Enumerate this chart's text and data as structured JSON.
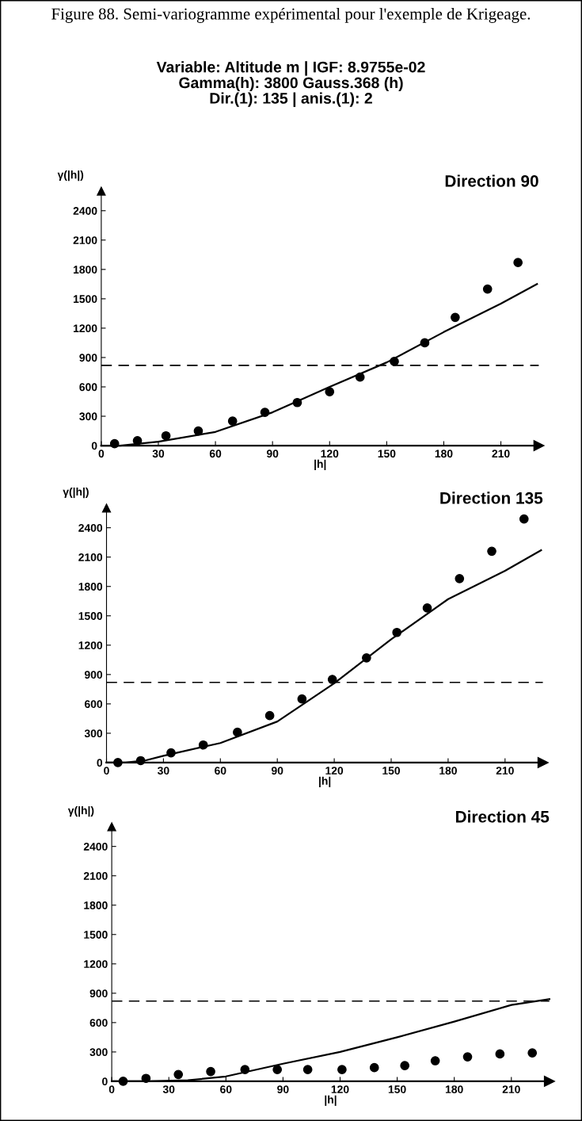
{
  "chart_data": [
    {
      "type": "scatter",
      "title": "Direction 90",
      "xlabel": "|h|",
      "ylabel": "γ(|h|)",
      "annotations": [
        "Figure 88. Semi-variogramme expérimental pour l'exemple de Krigeage.",
        "Variable: Altitude m | IGF: 8.9755e-02\nGamma(h): 3800 Gauss.368 (h)\nDir.(1): 135 | anis.(1): 2"
      ],
      "xlim": [
        0,
        230
      ],
      "ylim": [
        0,
        2600
      ],
      "xticks": [
        0,
        30,
        60,
        90,
        120,
        150,
        180,
        210
      ],
      "yticks": [
        0,
        300,
        600,
        900,
        1200,
        1500,
        1800,
        2100,
        2400
      ],
      "grid": false,
      "legend": false,
      "series": [
        {
          "marker": "circle",
          "color": "#000000",
          "x": [
            7,
            19,
            34,
            51,
            69,
            86,
            103,
            120,
            136,
            154,
            170,
            186,
            203,
            219
          ],
          "values": [
            20,
            50,
            100,
            150,
            250,
            340,
            440,
            550,
            700,
            860,
            1050,
            1310,
            1600,
            1870
          ]
        },
        {
          "type": "line",
          "marker": "none",
          "line_style": "solid",
          "color": "#000000",
          "x": [
            0,
            10,
            20,
            30,
            60,
            90,
            120,
            150,
            180,
            210,
            229
          ],
          "values": [
            0,
            0,
            20,
            40,
            140,
            340,
            600,
            850,
            1160,
            1450,
            1650
          ]
        }
      ],
      "ref_lines": [
        {
          "axis": "y",
          "value": 820,
          "line_style": "dashed",
          "color": "#000000"
        }
      ]
    },
    {
      "type": "scatter",
      "title": "Direction 135",
      "xlabel": "|h|",
      "ylabel": "γ(|h|)",
      "xlim": [
        0,
        230
      ],
      "ylim": [
        0,
        2600
      ],
      "xticks": [
        0,
        30,
        60,
        90,
        120,
        150,
        180,
        210
      ],
      "yticks": [
        0,
        300,
        600,
        900,
        1200,
        1500,
        1800,
        2100,
        2400
      ],
      "grid": false,
      "legend": false,
      "series": [
        {
          "marker": "circle",
          "color": "#000000",
          "x": [
            6,
            18,
            34,
            51,
            69,
            86,
            103,
            119,
            137,
            153,
            169,
            186,
            203,
            220
          ],
          "values": [
            0,
            20,
            100,
            180,
            310,
            480,
            650,
            850,
            1070,
            1330,
            1580,
            1880,
            2160,
            2490
          ]
        },
        {
          "type": "line",
          "marker": "none",
          "line_style": "solid",
          "color": "#000000",
          "x": [
            0,
            10,
            20,
            30,
            60,
            90,
            120,
            150,
            180,
            210,
            229
          ],
          "values": [
            0,
            0,
            20,
            70,
            200,
            420,
            810,
            1260,
            1670,
            1960,
            2170
          ]
        }
      ],
      "ref_lines": [
        {
          "axis": "y",
          "value": 820,
          "line_style": "dashed",
          "color": "#000000"
        }
      ]
    },
    {
      "type": "scatter",
      "title": "Direction 45",
      "xlabel": "|h|",
      "ylabel": "γ(|h|)",
      "xlim": [
        0,
        230
      ],
      "ylim": [
        0,
        2600
      ],
      "xticks": [
        0,
        30,
        60,
        90,
        120,
        150,
        180,
        210
      ],
      "yticks": [
        0,
        300,
        600,
        900,
        1200,
        1500,
        1800,
        2100,
        2400
      ],
      "grid": false,
      "legend": false,
      "series": [
        {
          "marker": "circle",
          "color": "#000000",
          "x": [
            6,
            18,
            35,
            52,
            70,
            87,
            103,
            121,
            138,
            154,
            170,
            187,
            204,
            221
          ],
          "values": [
            0,
            30,
            70,
            100,
            120,
            120,
            120,
            120,
            140,
            160,
            210,
            250,
            280,
            290
          ]
        },
        {
          "type": "line",
          "marker": "none",
          "line_style": "solid",
          "color": "#000000",
          "x": [
            0,
            20,
            40,
            60,
            90,
            120,
            150,
            180,
            210,
            230
          ],
          "values": [
            0,
            0,
            10,
            50,
            180,
            300,
            450,
            610,
            780,
            840
          ]
        }
      ],
      "ref_lines": [
        {
          "axis": "y",
          "value": 820,
          "line_style": "dashed",
          "color": "#000000"
        }
      ]
    }
  ]
}
